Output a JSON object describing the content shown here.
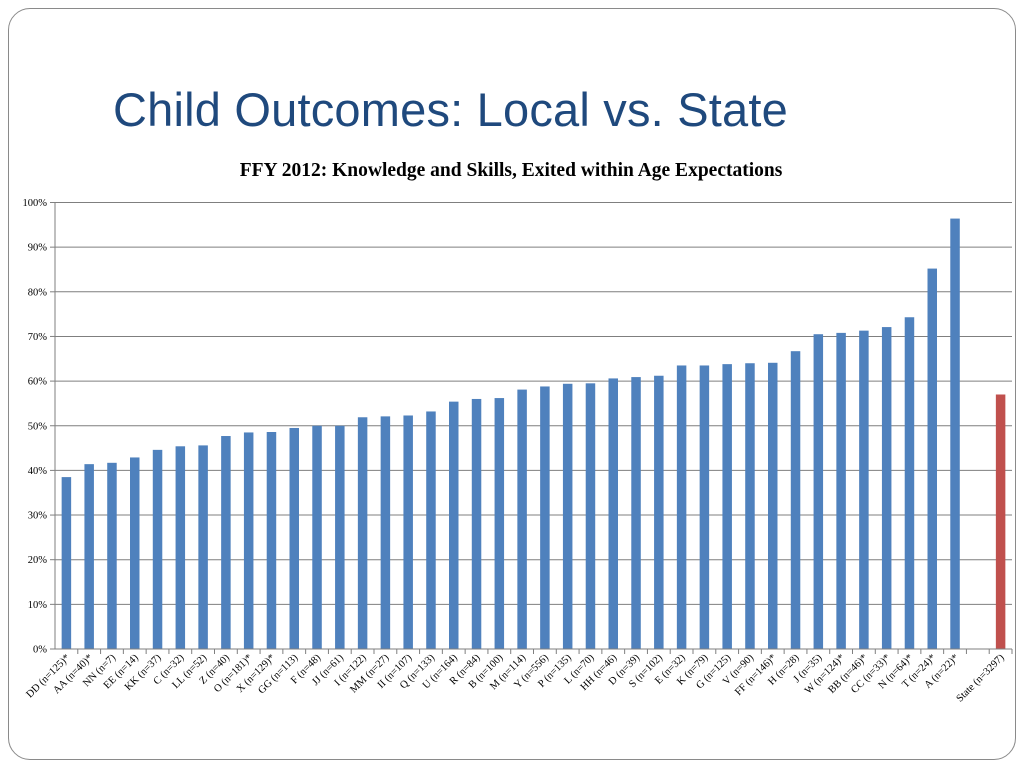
{
  "slide": {
    "title": "Child Outcomes: Local vs. State"
  },
  "chart_data": {
    "type": "bar",
    "title": "FFY 2012: Knowledge and Skills, Exited within Age Expectations",
    "xlabel": "",
    "ylabel": "",
    "ylim": [
      0,
      100
    ],
    "y_ticks": [
      "0%",
      "10%",
      "20%",
      "30%",
      "40%",
      "50%",
      "60%",
      "70%",
      "80%",
      "90%",
      "100%"
    ],
    "grid": true,
    "legend": "none",
    "colors": {
      "local": "#4f81bd",
      "state": "#c0504d",
      "grid": "#7f7f7f"
    },
    "categories": [
      "DD (n=125)*",
      "AA (n=40)*",
      "NN (n=7)",
      "EE (n=14)",
      "KK (n=37)",
      "C (n=32)",
      "LL (n=52)",
      "Z (n=40)",
      "O (n=181)*",
      "X (n=129)*",
      "GG (n=113)",
      "F (n=48)",
      "JJ (n=61)",
      "I (n=122)",
      "MM (n=27)",
      "II (n=107)",
      "Q (n=133)",
      "U (n=164)",
      "R (n=84)",
      "B (n=100)",
      "M (n=114)",
      "Y (n=556)",
      "P (n=135)",
      "L (n=70)",
      "HH (n=46)",
      "D (n=39)",
      "S (n=102)",
      "E (n=32)",
      "K (n=79)",
      "G (n=125)",
      "V (n=90)",
      "FF (n=146)*",
      "H (n=28)",
      "J (n=35)",
      "W (n=124)*",
      "BB (n=46)*",
      "CC (n=33)*",
      "N (n=64)*",
      "T (n=24)*",
      "A (n=22)*",
      "",
      "State (n=3297)"
    ],
    "values": [
      38.5,
      41.4,
      41.7,
      42.9,
      44.6,
      45.4,
      45.6,
      47.7,
      48.5,
      48.6,
      49.5,
      50.0,
      50.0,
      51.9,
      52.1,
      52.3,
      53.2,
      55.4,
      56.0,
      56.2,
      58.1,
      58.8,
      59.4,
      59.5,
      60.6,
      60.9,
      61.2,
      63.5,
      63.5,
      63.8,
      64.0,
      64.1,
      66.7,
      70.5,
      70.8,
      71.3,
      72.1,
      74.3,
      85.2,
      96.4,
      null,
      57.0
    ],
    "bar_series": [
      "local",
      "local",
      "local",
      "local",
      "local",
      "local",
      "local",
      "local",
      "local",
      "local",
      "local",
      "local",
      "local",
      "local",
      "local",
      "local",
      "local",
      "local",
      "local",
      "local",
      "local",
      "local",
      "local",
      "local",
      "local",
      "local",
      "local",
      "local",
      "local",
      "local",
      "local",
      "local",
      "local",
      "local",
      "local",
      "local",
      "local",
      "local",
      "local",
      "local",
      "none",
      "state"
    ]
  }
}
